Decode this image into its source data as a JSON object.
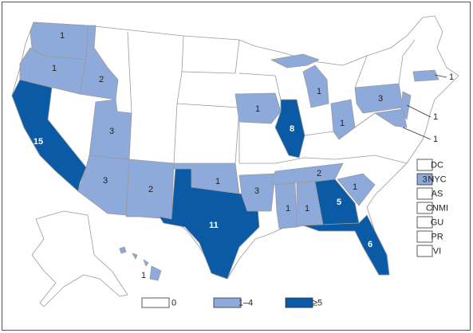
{
  "map": {
    "states": [
      {
        "value": 1,
        "color": "#8eaadb"
      },
      {
        "value": 1,
        "color": "#8eaadb"
      },
      {
        "value": 2,
        "color": "#8eaadb"
      },
      {
        "value": 15,
        "color": "#0b5aa6"
      },
      {
        "value": 3,
        "color": "#8eaadb"
      },
      {
        "value": 3,
        "color": "#8eaadb"
      },
      {
        "value": 2,
        "color": "#8eaadb"
      },
      {
        "value": 11,
        "color": "#0b5aa6"
      },
      {
        "value": 1,
        "color": "#8eaadb"
      },
      {
        "value": 3,
        "color": "#8eaadb"
      },
      {
        "value": 1,
        "color": "#8eaadb"
      },
      {
        "value": 8,
        "color": "#0b5aa6"
      },
      {
        "value": 1,
        "color": "#8eaadb"
      },
      {
        "value": 1,
        "color": "#8eaadb"
      },
      {
        "value": 3,
        "color": "#8eaadb"
      },
      {
        "value": 2,
        "color": "#8eaadb"
      },
      {
        "value": 1,
        "color": "#8eaadb"
      },
      {
        "value": 1,
        "color": "#8eaadb"
      },
      {
        "value": 5,
        "color": "#0b5aa6"
      },
      {
        "value": 1,
        "color": "#8eaadb"
      },
      {
        "value": 6,
        "color": "#0b5aa6"
      },
      {
        "value": 1,
        "color": "#8eaadb"
      },
      {
        "value": 1,
        "color": "#8eaadb"
      },
      {
        "value": 1,
        "color": "#8eaadb"
      },
      {
        "value": 1,
        "color": "#8eaadb"
      }
    ],
    "territories": [
      {
        "label": "DC",
        "color": "#ffffff"
      },
      {
        "label": "NYC",
        "value": 3,
        "color": "#8eaadb"
      },
      {
        "label": "AS",
        "color": "#ffffff"
      },
      {
        "label": "CNMI",
        "color": "#ffffff"
      },
      {
        "label": "GU",
        "color": "#ffffff"
      },
      {
        "label": "PR",
        "color": "#ffffff"
      },
      {
        "label": "VI",
        "color": "#ffffff"
      }
    ],
    "legend": [
      {
        "label": "0",
        "color": "#ffffff"
      },
      {
        "label": "1–4",
        "color": "#8eaadb"
      },
      {
        "label": "≥5",
        "color": "#0b5aa6"
      }
    ]
  }
}
